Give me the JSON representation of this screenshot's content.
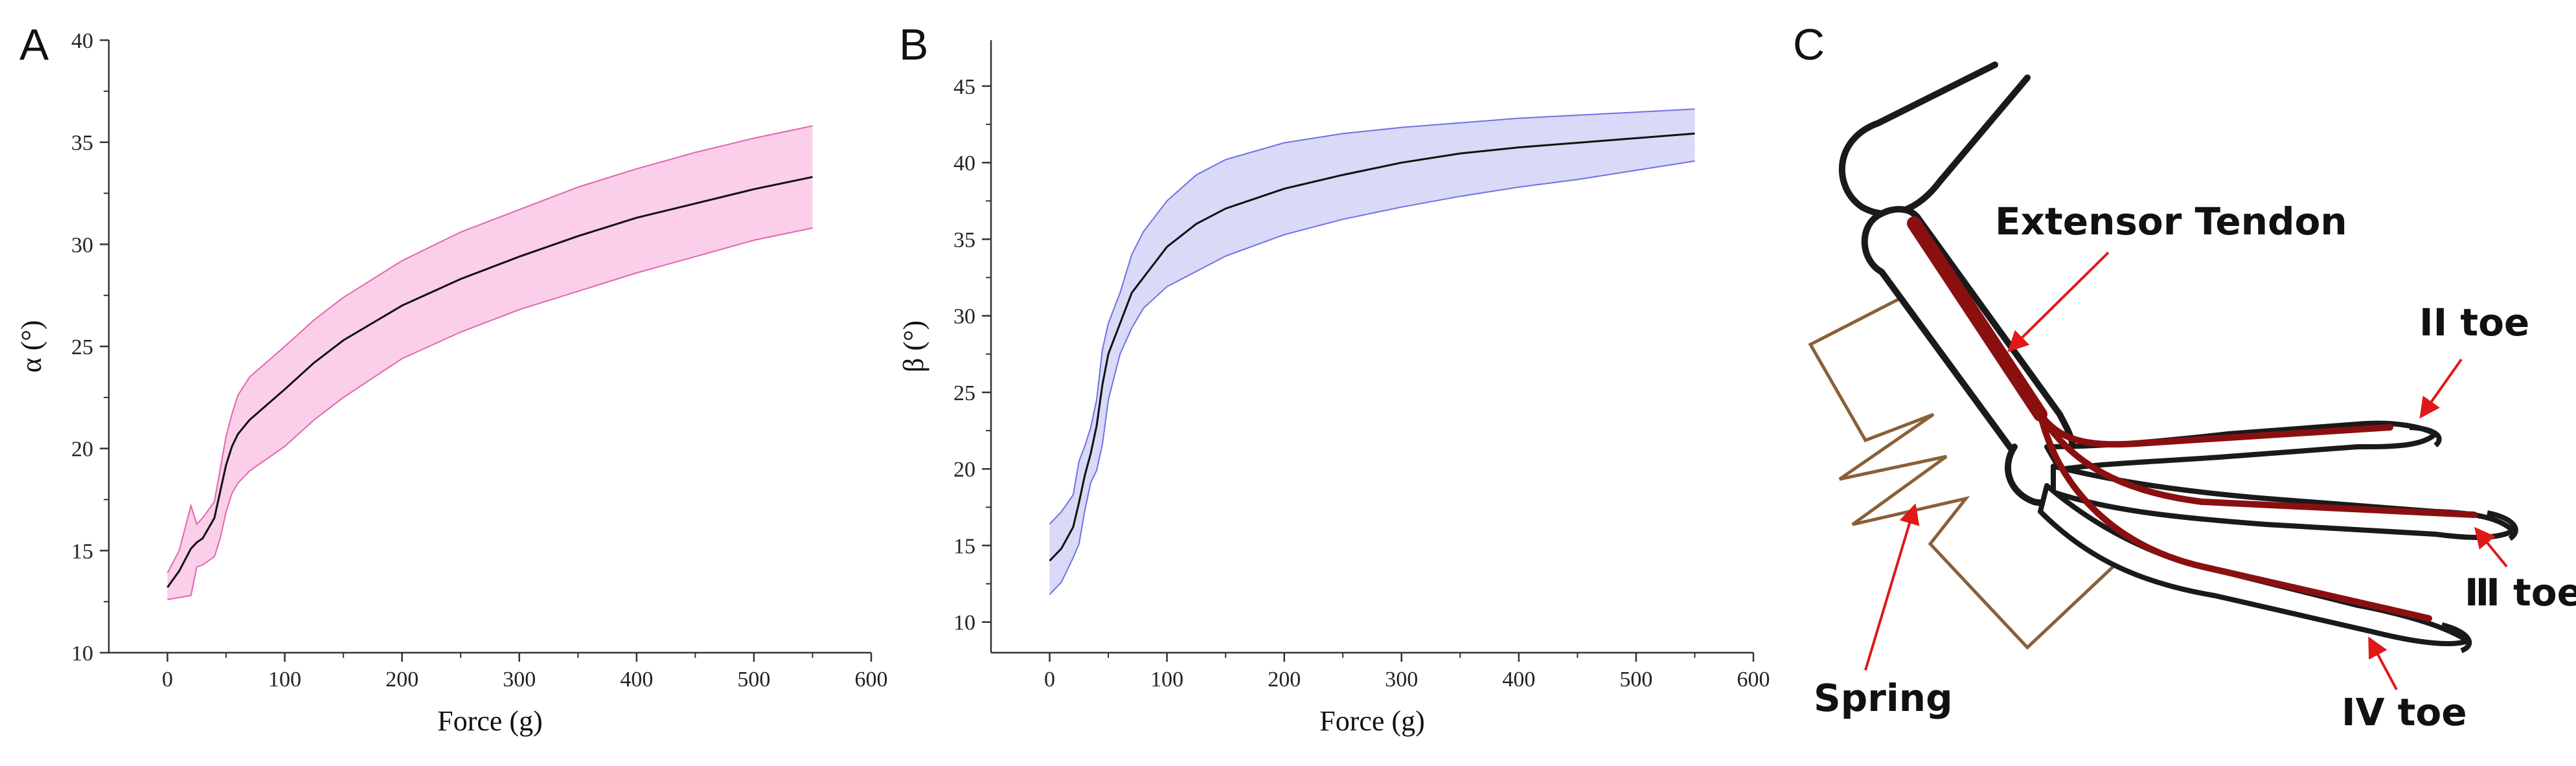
{
  "panels": {
    "a_letter": "A",
    "b_letter": "B",
    "c_letter": "C"
  },
  "chart_data": [
    {
      "type": "area",
      "panel": "A",
      "xlabel": "Force (g)",
      "ylabel": "α (°)",
      "xlim": [
        -50,
        600
      ],
      "ylim": [
        10,
        40
      ],
      "xticks": [
        0,
        100,
        200,
        300,
        400,
        500,
        600
      ],
      "yticks": [
        10,
        15,
        20,
        25,
        30,
        35,
        40
      ],
      "band_color": "#f7a6d8",
      "band_edge_color": "#e066b0",
      "line_color": "#111111",
      "x": [
        0,
        10,
        20,
        25,
        30,
        40,
        45,
        50,
        55,
        60,
        70,
        80,
        100,
        125,
        150,
        200,
        250,
        300,
        350,
        400,
        450,
        500,
        550
      ],
      "mean": [
        13.2,
        14.0,
        15.1,
        15.4,
        15.6,
        16.6,
        17.9,
        19.2,
        20.1,
        20.7,
        21.4,
        21.9,
        22.9,
        24.2,
        25.3,
        27.0,
        28.3,
        29.4,
        30.4,
        31.3,
        32.0,
        32.7,
        33.3
      ],
      "upper": [
        13.9,
        15.0,
        17.2,
        16.3,
        16.6,
        17.4,
        19.0,
        20.6,
        21.7,
        22.6,
        23.5,
        24.0,
        25.0,
        26.3,
        27.4,
        29.2,
        30.6,
        31.7,
        32.8,
        33.7,
        34.5,
        35.2,
        35.8
      ],
      "lower": [
        12.6,
        12.7,
        12.8,
        14.2,
        14.3,
        14.7,
        15.6,
        16.9,
        17.8,
        18.3,
        18.9,
        19.3,
        20.1,
        21.4,
        22.5,
        24.4,
        25.7,
        26.8,
        27.7,
        28.6,
        29.4,
        30.2,
        30.8
      ]
    },
    {
      "type": "area",
      "panel": "B",
      "xlabel": "Force (g)",
      "ylabel": "β (°)",
      "xlim": [
        -50,
        600
      ],
      "ylim": [
        8,
        48
      ],
      "xticks": [
        0,
        100,
        200,
        300,
        400,
        500,
        600
      ],
      "yticks": [
        10,
        15,
        20,
        25,
        30,
        35,
        40,
        45
      ],
      "band_color": "#b9b9f2",
      "band_edge_color": "#6f6fe6",
      "line_color": "#111111",
      "x": [
        0,
        10,
        20,
        25,
        30,
        35,
        40,
        45,
        50,
        55,
        60,
        70,
        80,
        100,
        125,
        150,
        200,
        250,
        300,
        350,
        400,
        450,
        500,
        550
      ],
      "mean": [
        14.0,
        14.8,
        16.2,
        17.8,
        19.6,
        21.0,
        22.8,
        25.5,
        27.5,
        28.5,
        29.5,
        31.5,
        32.5,
        34.5,
        36.0,
        37.0,
        38.3,
        39.2,
        40.0,
        40.6,
        41.0,
        41.3,
        41.6,
        41.9
      ],
      "upper": [
        16.4,
        17.2,
        18.3,
        20.5,
        21.5,
        22.7,
        24.5,
        27.8,
        29.5,
        30.5,
        31.5,
        34.0,
        35.5,
        37.5,
        39.2,
        40.2,
        41.3,
        41.9,
        42.3,
        42.6,
        42.9,
        43.1,
        43.3,
        43.5
      ],
      "lower": [
        11.8,
        12.6,
        14.2,
        15.1,
        17.3,
        19.1,
        19.9,
        21.6,
        24.5,
        26.0,
        27.5,
        29.2,
        30.5,
        31.9,
        32.9,
        33.9,
        35.3,
        36.3,
        37.1,
        37.8,
        38.4,
        38.9,
        39.5,
        40.1
      ]
    }
  ],
  "diagram": {
    "labels": {
      "extensor": "Extensor Tendon",
      "toe2": "II toe",
      "toe3": "Ⅲ toe",
      "toe4": "IV toe",
      "spring": "Spring"
    },
    "colors": {
      "bone": "#1a1a1a",
      "tendon": "#8a1010",
      "spring": "#8a6038",
      "arrow": "#e01818"
    }
  }
}
